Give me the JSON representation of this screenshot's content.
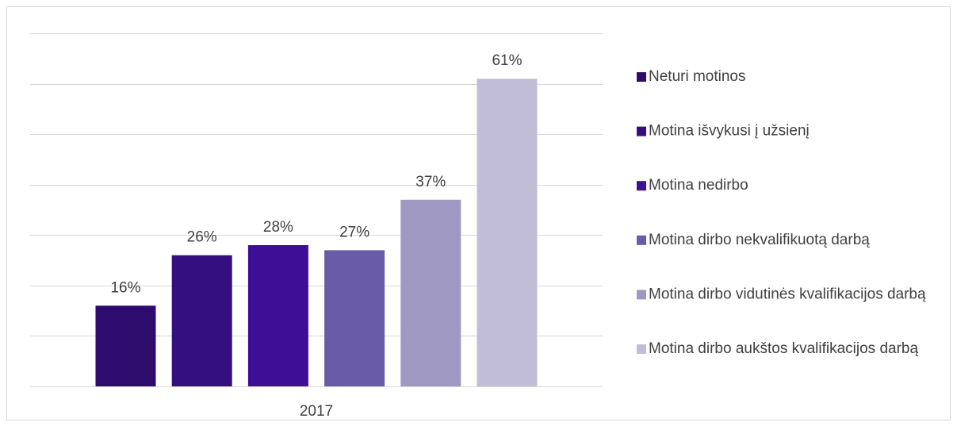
{
  "chart_data": {
    "type": "bar",
    "categories": [
      "2017"
    ],
    "series": [
      {
        "name": "Neturi motinos",
        "color": "#2d0c6d",
        "values": [
          16
        ],
        "value_labels": [
          "16%"
        ]
      },
      {
        "name": "Motina išvykusi į užsienį",
        "color": "#330f80",
        "values": [
          26
        ],
        "value_labels": [
          "26%"
        ]
      },
      {
        "name": "Motina nedirbo",
        "color": "#3d0e96",
        "values": [
          28
        ],
        "value_labels": [
          "28%"
        ]
      },
      {
        "name": "Motina dirbo nekvalifikuotą darbą",
        "color": "#6a5ba8",
        "values": [
          27
        ],
        "value_labels": [
          "27%"
        ]
      },
      {
        "name": "Motina dirbo vidutinės kvalifikacijos darbą",
        "color": "#9f98c3",
        "values": [
          37
        ],
        "value_labels": [
          "37%"
        ]
      },
      {
        "name": "Motina dirbo aukštos kvalifikacijos darbą",
        "color": "#c1bdd7",
        "values": [
          61
        ],
        "value_labels": [
          "61%"
        ]
      }
    ],
    "ylim": [
      0,
      70
    ],
    "yticks": [
      0,
      10,
      20,
      30,
      40,
      50,
      60,
      70
    ],
    "grid": true,
    "legend": "right"
  }
}
